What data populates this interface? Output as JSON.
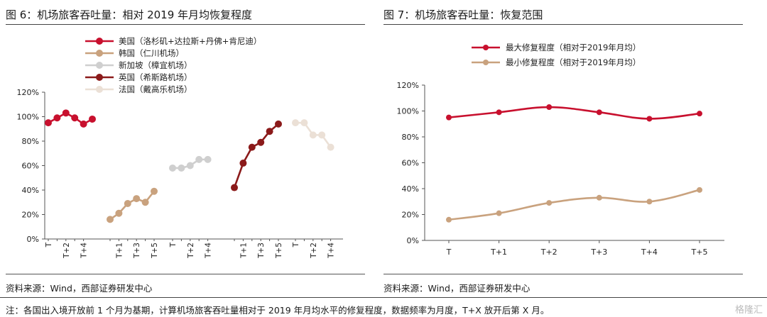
{
  "left": {
    "title": "图 6：机场旅客吞吐量：相对 2019 年月均恢复程度",
    "source": "资料来源：Wind，西部证券研发中心"
  },
  "right": {
    "title": "图 7：机场旅客吞吐量：恢复范围",
    "source": "资料来源：Wind，西部证券研发中心"
  },
  "note": "注：各国出入境开放前 1 个月为基期，计算机场旅客吞吐量相对于 2019 年月均水平的修复程度，数据频率为月度，T+X 放开后第 X 月。",
  "watermark": "格隆汇",
  "chart_data": [
    {
      "type": "line",
      "ylim": [
        0,
        120
      ],
      "yticks": [
        "0%",
        "20%",
        "40%",
        "60%",
        "80%",
        "100%",
        "120%"
      ],
      "legend_position": "top-left",
      "series": [
        {
          "name": "美国（洛杉矶+达拉斯+丹佛+肯尼迪）",
          "color": "#c8102e",
          "x": [
            "T",
            "T+1",
            "T+2",
            "T+3",
            "T+4",
            "T+5"
          ],
          "values": [
            95,
            99,
            103,
            99,
            94,
            98
          ]
        },
        {
          "name": "韩国（仁川机场）",
          "color": "#c9a27e",
          "x": [
            "T",
            "T+1",
            "T+2",
            "T+3",
            "T+4",
            "T+5"
          ],
          "values": [
            16,
            21,
            29,
            33,
            30,
            39
          ]
        },
        {
          "name": "新加坡（樟宜机场）",
          "color": "#cfcfcf",
          "x": [
            "T",
            "T+1",
            "T+2",
            "T+3",
            "T+4"
          ],
          "values": [
            58,
            58,
            60,
            65,
            65
          ]
        },
        {
          "name": "英国（希斯路机场）",
          "color": "#8b1a1a",
          "x": [
            "T",
            "T+1",
            "T+2",
            "T+3",
            "T+4",
            "T+5"
          ],
          "values": [
            42,
            62,
            75,
            79,
            88,
            94
          ]
        },
        {
          "name": "法国（戴高乐机场）",
          "color": "#ebe0d6",
          "x": [
            "T",
            "T+1",
            "T+2",
            "T+3",
            "T+4"
          ],
          "values": [
            95,
            95,
            85,
            85,
            75
          ]
        }
      ],
      "xgroups": [
        {
          "labels": [
            "T",
            "",
            "T+2",
            "",
            "T+4"
          ]
        },
        {
          "labels": [
            "",
            "T+1",
            "",
            "T+3",
            "",
            "T+5"
          ]
        },
        {
          "labels": [
            "T",
            "",
            "T+2",
            "",
            "T+4"
          ]
        },
        {
          "labels": [
            "",
            "T+1",
            "",
            "T+3",
            "",
            "T+5"
          ]
        },
        {
          "labels": [
            "T",
            "",
            "T+2",
            "",
            "T+4"
          ]
        }
      ]
    },
    {
      "type": "line",
      "categories": [
        "T",
        "T+1",
        "T+2",
        "T+3",
        "T+4",
        "T+5"
      ],
      "ylim": [
        0,
        120
      ],
      "yticks": [
        "0%",
        "20%",
        "40%",
        "60%",
        "80%",
        "100%",
        "120%"
      ],
      "legend_position": "top-left",
      "series": [
        {
          "name": "最大修复程度（相对于2019年月均）",
          "color": "#c8102e",
          "values": [
            95,
            99,
            103,
            99,
            94,
            98
          ]
        },
        {
          "name": "最小修复程度（相对于2019年月均）",
          "color": "#c9a27e",
          "values": [
            16,
            21,
            29,
            33,
            30,
            39
          ]
        }
      ]
    }
  ]
}
